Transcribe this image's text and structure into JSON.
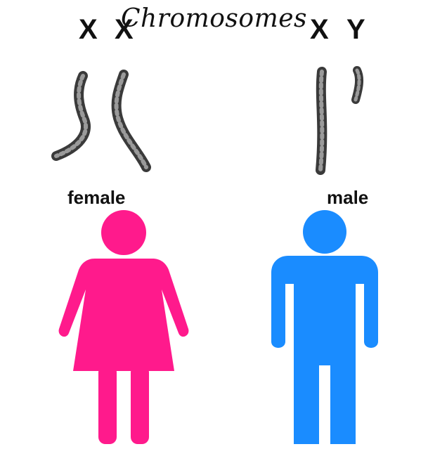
{
  "title": "Chromosomes",
  "female": {
    "label": "female",
    "chromosomes": [
      "X",
      "X"
    ],
    "color": "#ff1a8c"
  },
  "male": {
    "label": "male",
    "chromosomes": [
      "X",
      "Y"
    ],
    "color": "#1a8cff"
  },
  "chromosome_color": "#4a4a4a"
}
